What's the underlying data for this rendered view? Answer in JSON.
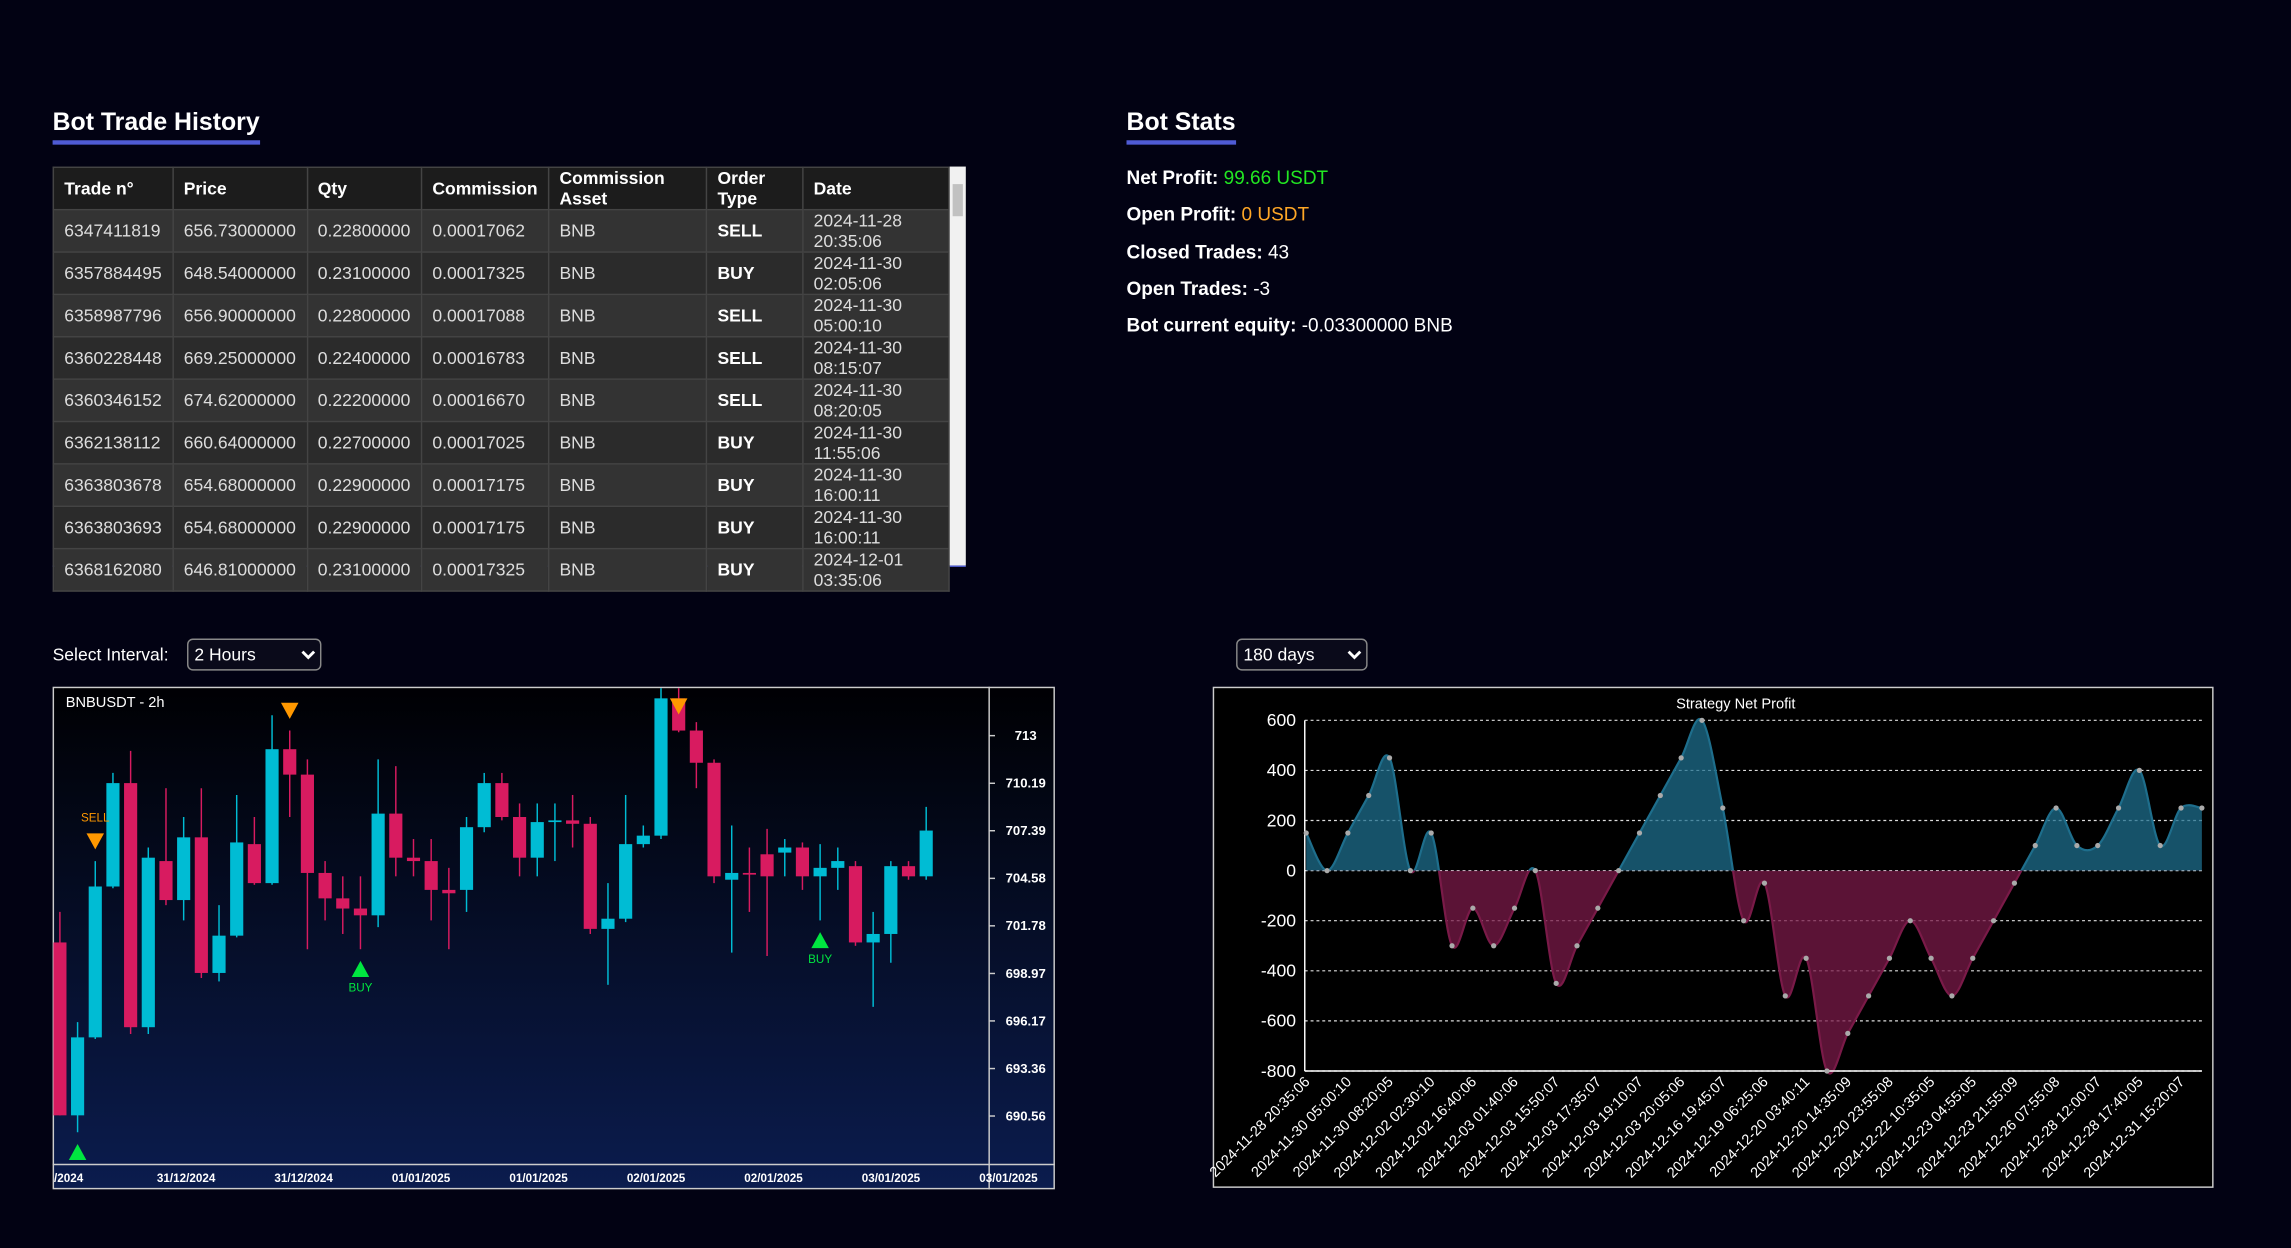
{
  "trade_history": {
    "title": "Bot Trade History",
    "columns": [
      "Trade n°",
      "Price",
      "Qty",
      "Commission",
      "Commission Asset",
      "Order Type",
      "Date"
    ],
    "rows": [
      [
        "6347411819",
        "656.73000000",
        "0.22800000",
        "0.00017062",
        "BNB",
        "SELL",
        "2024-11-28 20:35:06"
      ],
      [
        "6357884495",
        "648.54000000",
        "0.23100000",
        "0.00017325",
        "BNB",
        "BUY",
        "2024-11-30 02:05:06"
      ],
      [
        "6358987796",
        "656.90000000",
        "0.22800000",
        "0.00017088",
        "BNB",
        "SELL",
        "2024-11-30 05:00:10"
      ],
      [
        "6360228448",
        "669.25000000",
        "0.22400000",
        "0.00016783",
        "BNB",
        "SELL",
        "2024-11-30 08:15:07"
      ],
      [
        "6360346152",
        "674.62000000",
        "0.22200000",
        "0.00016670",
        "BNB",
        "SELL",
        "2024-11-30 08:20:05"
      ],
      [
        "6362138112",
        "660.64000000",
        "0.22700000",
        "0.00017025",
        "BNB",
        "BUY",
        "2024-11-30 11:55:06"
      ],
      [
        "6363803678",
        "654.68000000",
        "0.22900000",
        "0.00017175",
        "BNB",
        "BUY",
        "2024-11-30 16:00:11"
      ],
      [
        "6363803693",
        "654.68000000",
        "0.22900000",
        "0.00017175",
        "BNB",
        "BUY",
        "2024-11-30 16:00:11"
      ],
      [
        "6368162080",
        "646.81000000",
        "0.23100000",
        "0.00017325",
        "BNB",
        "BUY",
        "2024-12-01 03:35:06"
      ]
    ]
  },
  "bot_stats": {
    "title": "Bot Stats",
    "items": [
      {
        "label": "Net Profit:",
        "value": "99.66 USDT"
      },
      {
        "label": "Open Profit:",
        "value": "0 USDT"
      },
      {
        "label": "Closed Trades:",
        "value": "43"
      },
      {
        "label": "Open Trades:",
        "value": "-3"
      },
      {
        "label": "Bot current equity:",
        "value": "-0.03300000 BNB"
      }
    ]
  },
  "interval_control": {
    "label": "Select Interval:",
    "selected": "2 Hours"
  },
  "period_control": {
    "selected": "180 days"
  },
  "chart_data": [
    {
      "type": "candlestick",
      "title": "BNBUSDT - 2h",
      "up_color": "#00bcd4",
      "down_color": "#d81b60",
      "open": [
        700.8,
        690.6,
        695.2,
        704.1,
        710.2,
        695.8,
        705.6,
        703.3,
        707.0,
        699.0,
        701.2,
        706.6,
        704.3,
        712.2,
        710.7,
        704.9,
        703.4,
        702.8,
        702.4,
        708.4,
        705.8,
        705.6,
        703.9,
        703.9,
        707.6,
        710.2,
        708.2,
        705.8,
        707.9,
        708.0,
        707.8,
        701.6,
        702.2,
        706.6,
        707.1,
        715.2,
        713.3,
        711.4,
        704.5,
        704.9,
        706.0,
        706.1,
        706.4,
        704.7,
        705.2,
        705.3,
        700.8,
        701.3,
        705.3,
        704.7
      ],
      "high": [
        702.6,
        696.1,
        705.6,
        710.8,
        712.1,
        706.4,
        709.9,
        708.2,
        709.9,
        703.0,
        709.5,
        708.2,
        714.2,
        713.3,
        711.6,
        705.6,
        704.7,
        704.7,
        711.6,
        711.2,
        706.9,
        706.9,
        705.2,
        708.2,
        710.8,
        710.8,
        709.0,
        709.0,
        709.0,
        709.5,
        708.2,
        704.3,
        709.5,
        707.7,
        715.8,
        715.8,
        713.8,
        711.6,
        707.7,
        706.4,
        707.5,
        706.9,
        706.7,
        706.6,
        706.4,
        705.6,
        702.6,
        705.6,
        705.6,
        708.8
      ],
      "low": [
        690.6,
        689.6,
        695.1,
        704.0,
        695.4,
        695.4,
        703.0,
        702.1,
        698.7,
        698.5,
        701.1,
        704.2,
        704.2,
        708.2,
        700.4,
        702.1,
        701.3,
        700.4,
        701.7,
        704.7,
        704.7,
        702.1,
        700.4,
        702.6,
        707.3,
        708.0,
        704.7,
        704.7,
        705.6,
        706.4,
        701.3,
        698.3,
        702.0,
        706.4,
        706.9,
        713.2,
        709.9,
        704.3,
        700.2,
        702.6,
        700.0,
        704.7,
        703.9,
        702.1,
        703.9,
        700.6,
        697.0,
        699.6,
        704.5,
        704.5
      ],
      "close": [
        690.6,
        695.2,
        704.1,
        710.2,
        695.8,
        705.8,
        703.3,
        707.0,
        699.0,
        701.2,
        706.7,
        704.3,
        712.2,
        710.7,
        704.9,
        703.4,
        702.8,
        702.4,
        708.4,
        705.8,
        705.6,
        703.9,
        703.7,
        707.6,
        710.2,
        708.2,
        705.8,
        707.9,
        708.0,
        707.8,
        701.6,
        702.2,
        706.6,
        707.1,
        715.2,
        713.3,
        711.4,
        704.7,
        704.9,
        704.8,
        704.7,
        706.4,
        704.7,
        705.2,
        705.6,
        700.8,
        701.3,
        705.3,
        704.7,
        707.4
      ],
      "signals": [
        {
          "index": 1,
          "type": "BUY",
          "label": "BUY"
        },
        {
          "index": 2,
          "type": "SELL",
          "label": "SELL"
        },
        {
          "index": 13,
          "type": "SELL"
        },
        {
          "index": 17,
          "type": "BUY",
          "label": "BUY"
        },
        {
          "index": 35,
          "type": "SELL"
        },
        {
          "index": 43,
          "type": "BUY",
          "label": "BUY"
        }
      ],
      "buy_color": "#00e640",
      "sell_color": "#ff9800",
      "time_labels": [
        "/2024",
        "31/12/2024",
        "31/12/2024",
        "01/01/2025",
        "01/01/2025",
        "02/01/2025",
        "02/01/2025",
        "03/01/2025",
        "03/01/2025"
      ],
      "ylim": [
        687.7,
        715.8
      ],
      "yticks": [
        713,
        710.19,
        707.39,
        704.58,
        701.78,
        698.97,
        696.17,
        693.36,
        690.56
      ]
    },
    {
      "type": "area",
      "title": "Strategy Net Profit",
      "positive_color": "#1e6e8c",
      "negative_color": "#7a1a48",
      "grid": true,
      "categories": [
        "2024-11-28 20:35:06",
        null,
        "2024-11-30 05:00:10",
        null,
        "2024-11-30 08:20:05",
        null,
        "2024-12-02 02:30:10",
        null,
        "2024-12-02 16:40:06",
        null,
        "2024-12-03 01:40:06",
        null,
        "2024-12-03 15:50:07",
        null,
        "2024-12-03 17:35:07",
        null,
        "2024-12-03 19:10:07",
        null,
        "2024-12-03 20:05:06",
        null,
        "2024-12-16 19:45:07",
        null,
        "2024-12-19 06:25:06",
        null,
        "2024-12-20 03:40:11",
        null,
        "2024-12-20 14:35:09",
        null,
        "2024-12-20 23:55:08",
        null,
        "2024-12-22 10:35:05",
        null,
        "2024-12-23 04:55:05",
        null,
        "2024-12-23 21:55:09",
        null,
        "2024-12-26 07:55:08",
        null,
        "2024-12-28 12:00:07",
        null,
        "2024-12-28 17:40:05",
        null,
        "2024-12-31 15:20:07",
        null
      ],
      "values": [
        150,
        0,
        150,
        300,
        450,
        0,
        150,
        -300,
        -150,
        -300,
        -150,
        0,
        -450,
        -300,
        -150,
        0,
        150,
        300,
        450,
        600,
        250,
        -200,
        -50,
        -500,
        -350,
        -800,
        -650,
        -500,
        -350,
        -200,
        -350,
        -500,
        -350,
        -200,
        -50,
        100,
        250,
        100,
        100,
        250,
        400,
        100,
        250,
        250
      ],
      "ylim": [
        -800,
        600
      ],
      "yticks": [
        600,
        400,
        200,
        0,
        -200,
        -400,
        -600,
        -800
      ]
    }
  ]
}
